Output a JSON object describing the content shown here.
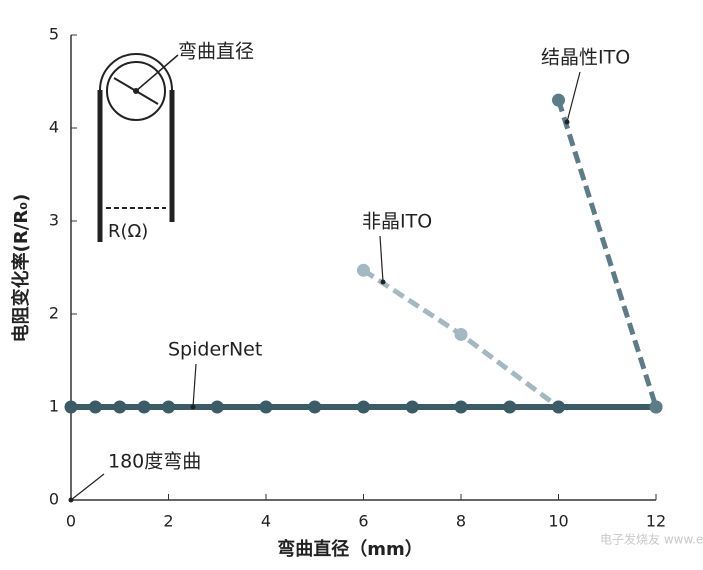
{
  "chart_data": {
    "type": "line",
    "x_label": "弯曲直径（mm）",
    "y_label": "电阻变化率(R/R₀)",
    "xlim": [
      0,
      12
    ],
    "xticks": [
      0,
      2,
      4,
      6,
      8,
      10,
      12
    ],
    "ylim": [
      0,
      5
    ],
    "yticks": [
      0,
      1,
      2,
      3,
      4,
      5
    ],
    "series": [
      {
        "name": "非晶ITO",
        "color": "#a3b8c1",
        "dashed": true,
        "x": [
          6,
          8,
          10
        ],
        "values": [
          2.47,
          1.78,
          1
        ]
      },
      {
        "name": "SpiderNet",
        "color": "#3b5c66",
        "dashed": false,
        "x": [
          0,
          0.5,
          1,
          1.5,
          2,
          3,
          4,
          5,
          6,
          7,
          8,
          9,
          10,
          12
        ],
        "values": [
          1,
          1,
          1,
          1,
          1,
          1,
          1,
          1,
          1,
          1,
          1,
          1,
          1,
          1
        ]
      },
      {
        "name": "结晶性ITO",
        "color": "#5d7c88",
        "dashed": true,
        "x": [
          10,
          12
        ],
        "values": [
          4.3,
          1
        ]
      }
    ],
    "annotations": [
      "180度弯曲"
    ],
    "inset": {
      "title": "弯曲直径",
      "gap_label": "R(Ω)"
    },
    "watermark": "电子发烧友 www.elecfans.com"
  }
}
